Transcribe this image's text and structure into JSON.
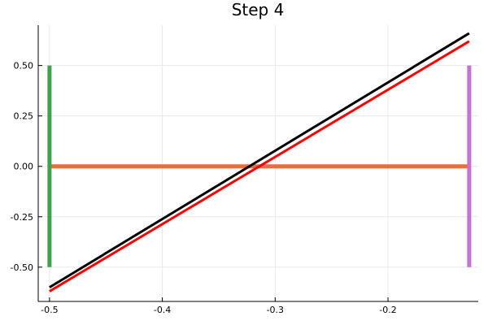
{
  "chart_data": {
    "type": "line",
    "title": "Step 4",
    "xlabel": "",
    "ylabel": "",
    "xlim": [
      -0.51,
      -0.12
    ],
    "ylim": [
      -0.67,
      0.7
    ],
    "xticks": [
      -0.5,
      -0.4,
      -0.3,
      -0.2
    ],
    "xtick_labels": [
      "-0.5",
      "-0.4",
      "-0.3",
      "-0.2"
    ],
    "yticks": [
      -0.5,
      -0.25,
      0.0,
      0.25,
      0.5
    ],
    "ytick_labels": [
      "-0.50",
      "-0.25",
      "0.00",
      "0.25",
      "0.50"
    ],
    "grid": true,
    "legend": "none",
    "series": [
      {
        "color": "#e26f46",
        "width": 5,
        "x": [
          -0.5,
          -0.128
        ],
        "y": [
          0.0,
          0.0
        ]
      },
      {
        "color": "#3da44d",
        "width": 5,
        "x": [
          -0.5,
          -0.5
        ],
        "y": [
          -0.5,
          0.5
        ]
      },
      {
        "color": "#c371d2",
        "width": 5,
        "x": [
          -0.128,
          -0.128
        ],
        "y": [
          -0.5,
          0.5
        ]
      },
      {
        "color": "#ff0000",
        "width": 3,
        "x": [
          -0.5,
          -0.128
        ],
        "y": [
          -0.62,
          0.62
        ]
      },
      {
        "color": "#000000",
        "width": 3,
        "x": [
          -0.5,
          -0.128
        ],
        "y": [
          -0.6,
          0.66
        ]
      }
    ]
  }
}
